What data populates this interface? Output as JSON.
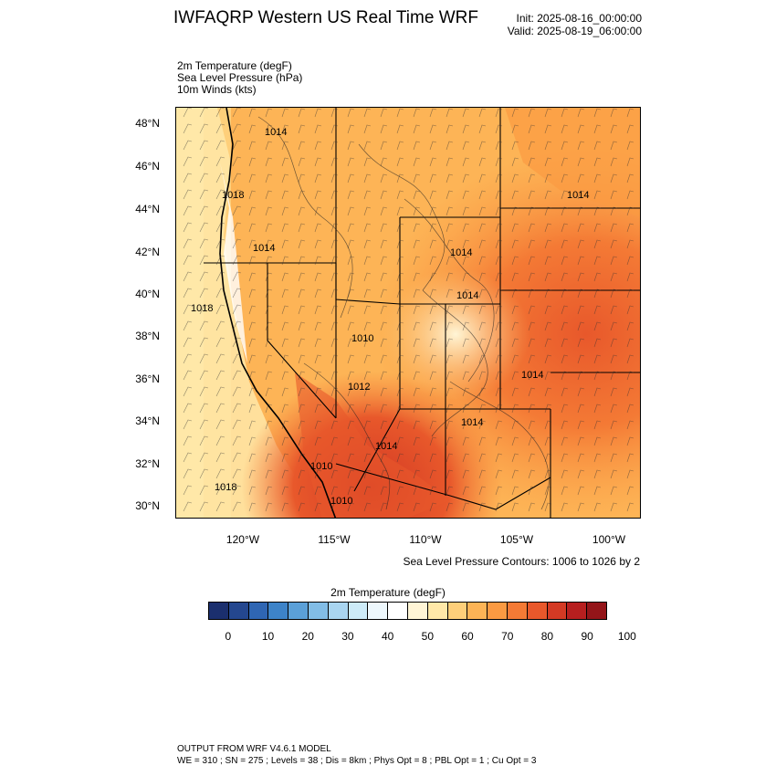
{
  "header": {
    "title": "IWFAQRP Western US Real Time WRF",
    "init": "Init: 2025-08-16_00:00:00",
    "valid": "Valid: 2025-08-19_06:00:00"
  },
  "fields": {
    "line1": "2m Temperature   (degF)",
    "line2": "Sea Level Pressure   (hPa)",
    "line3": "10m Winds   (kts)"
  },
  "axes": {
    "lat_labels": [
      "48°N",
      "46°N",
      "44°N",
      "42°N",
      "40°N",
      "38°N",
      "36°N",
      "34°N",
      "32°N",
      "30°N"
    ],
    "lon_labels": [
      "120°W",
      "115°W",
      "110°W",
      "105°W",
      "100°W"
    ]
  },
  "map": {
    "pressure_labels": [
      "1014",
      "1018",
      "1014",
      "1014",
      "1014",
      "1018",
      "1014",
      "1014",
      "1012",
      "1014",
      "1014",
      "1010",
      "1018",
      "1010",
      "1010"
    ],
    "contour_note": "Sea Level Pressure Contours: 1006 to 1026 by 2"
  },
  "colorbar": {
    "title": "2m Temperature   (degF)",
    "colors": [
      "#1b2f6e",
      "#24478f",
      "#2f66b3",
      "#3d83c8",
      "#5ba0d8",
      "#82bde6",
      "#a9d5f0",
      "#cdebf8",
      "#eef8fd",
      "#ffffff",
      "#fff5d6",
      "#ffe8a8",
      "#fecf7a",
      "#fdb456",
      "#fb9a42",
      "#f47a35",
      "#e8582b",
      "#d43a24",
      "#b71f1f",
      "#941519"
    ],
    "tick_labels": [
      "0",
      "10",
      "20",
      "30",
      "40",
      "50",
      "60",
      "70",
      "80",
      "90",
      "100"
    ]
  },
  "footer": {
    "line1": "OUTPUT FROM WRF V4.6.1 MODEL",
    "line2": "WE = 310 ; SN = 275 ; Levels = 38 ; Dis = 8km ; Phys Opt = 8 ; PBL Opt = 1 ; Cu Opt = 3"
  }
}
